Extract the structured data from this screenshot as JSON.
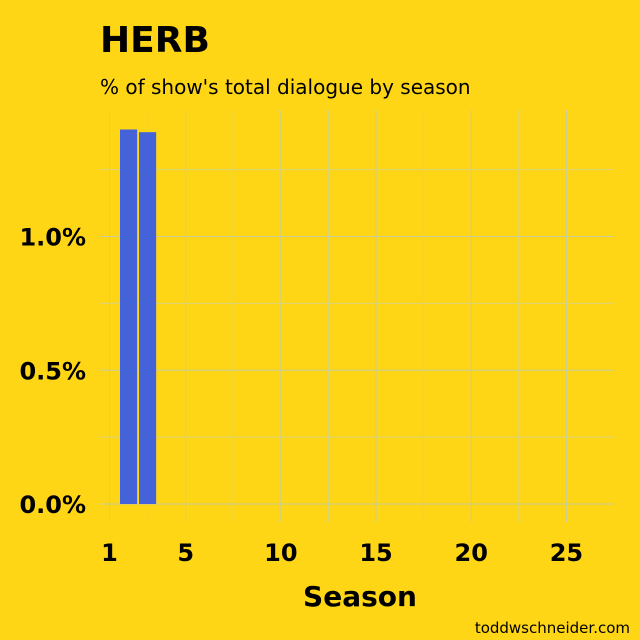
{
  "colors": {
    "background": "#FED616",
    "bar": "#4463D9",
    "text": "#000000"
  },
  "credit": "toddwschneider.com",
  "chart_data": {
    "type": "bar",
    "title": "HERB",
    "subtitle": "% of show's total dialogue by season",
    "xlabel": "Season",
    "ylabel": "",
    "x": [
      2,
      3
    ],
    "values": [
      1.4,
      1.39
    ],
    "xlim": [
      0.5,
      27.5
    ],
    "ylim": [
      0,
      1.45
    ],
    "x_ticks": [
      1,
      5,
      10,
      15,
      20,
      25
    ],
    "x_tick_labels": [
      "1",
      "5",
      "10",
      "15",
      "20",
      "25"
    ],
    "y_ticks": [
      0,
      0.5,
      1.0
    ],
    "y_tick_labels": [
      "0.0%",
      "0.5%",
      "1.0%"
    ],
    "y_minor_ticks": [
      0.25,
      0.75,
      1.25
    ],
    "grid": true,
    "legend": "none"
  }
}
